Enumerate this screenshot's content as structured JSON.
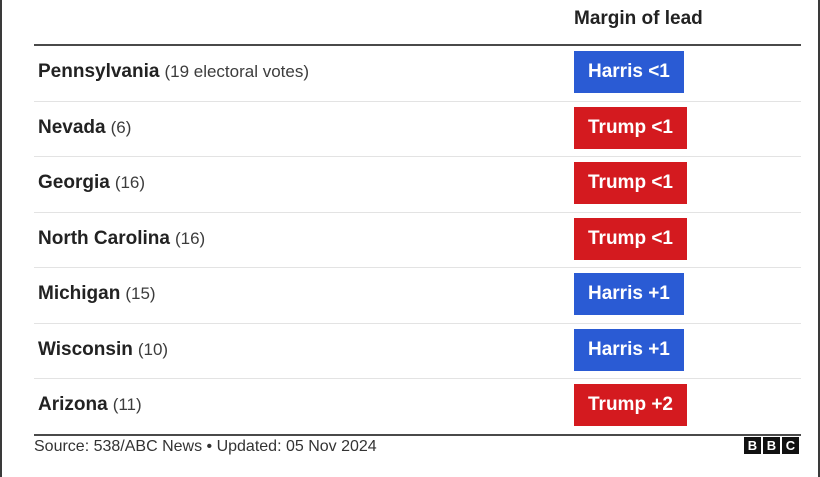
{
  "chart_data": {
    "type": "table",
    "column_header": "Margin of lead",
    "colors": {
      "Harris": "#2a5bd4",
      "Trump": "#d41a1f"
    },
    "rows": [
      {
        "state": "Pennsylvania",
        "votes": "(19 electoral votes)",
        "leader": "Harris",
        "lead": "Harris <1"
      },
      {
        "state": "Nevada",
        "votes": "(6)",
        "leader": "Trump",
        "lead": "Trump <1"
      },
      {
        "state": "Georgia",
        "votes": "(16)",
        "leader": "Trump",
        "lead": "Trump <1"
      },
      {
        "state": "North Carolina",
        "votes": "(16)",
        "leader": "Trump",
        "lead": "Trump <1"
      },
      {
        "state": "Michigan",
        "votes": "(15)",
        "leader": "Harris",
        "lead": "Harris +1"
      },
      {
        "state": "Wisconsin",
        "votes": "(10)",
        "leader": "Harris",
        "lead": "Harris +1"
      },
      {
        "state": "Arizona",
        "votes": "(11)",
        "leader": "Trump",
        "lead": "Trump +2"
      }
    ]
  },
  "footer": {
    "source": "Source: 538/ABC News • Updated: 05 Nov 2024",
    "logo_letters": [
      "B",
      "B",
      "C"
    ]
  }
}
